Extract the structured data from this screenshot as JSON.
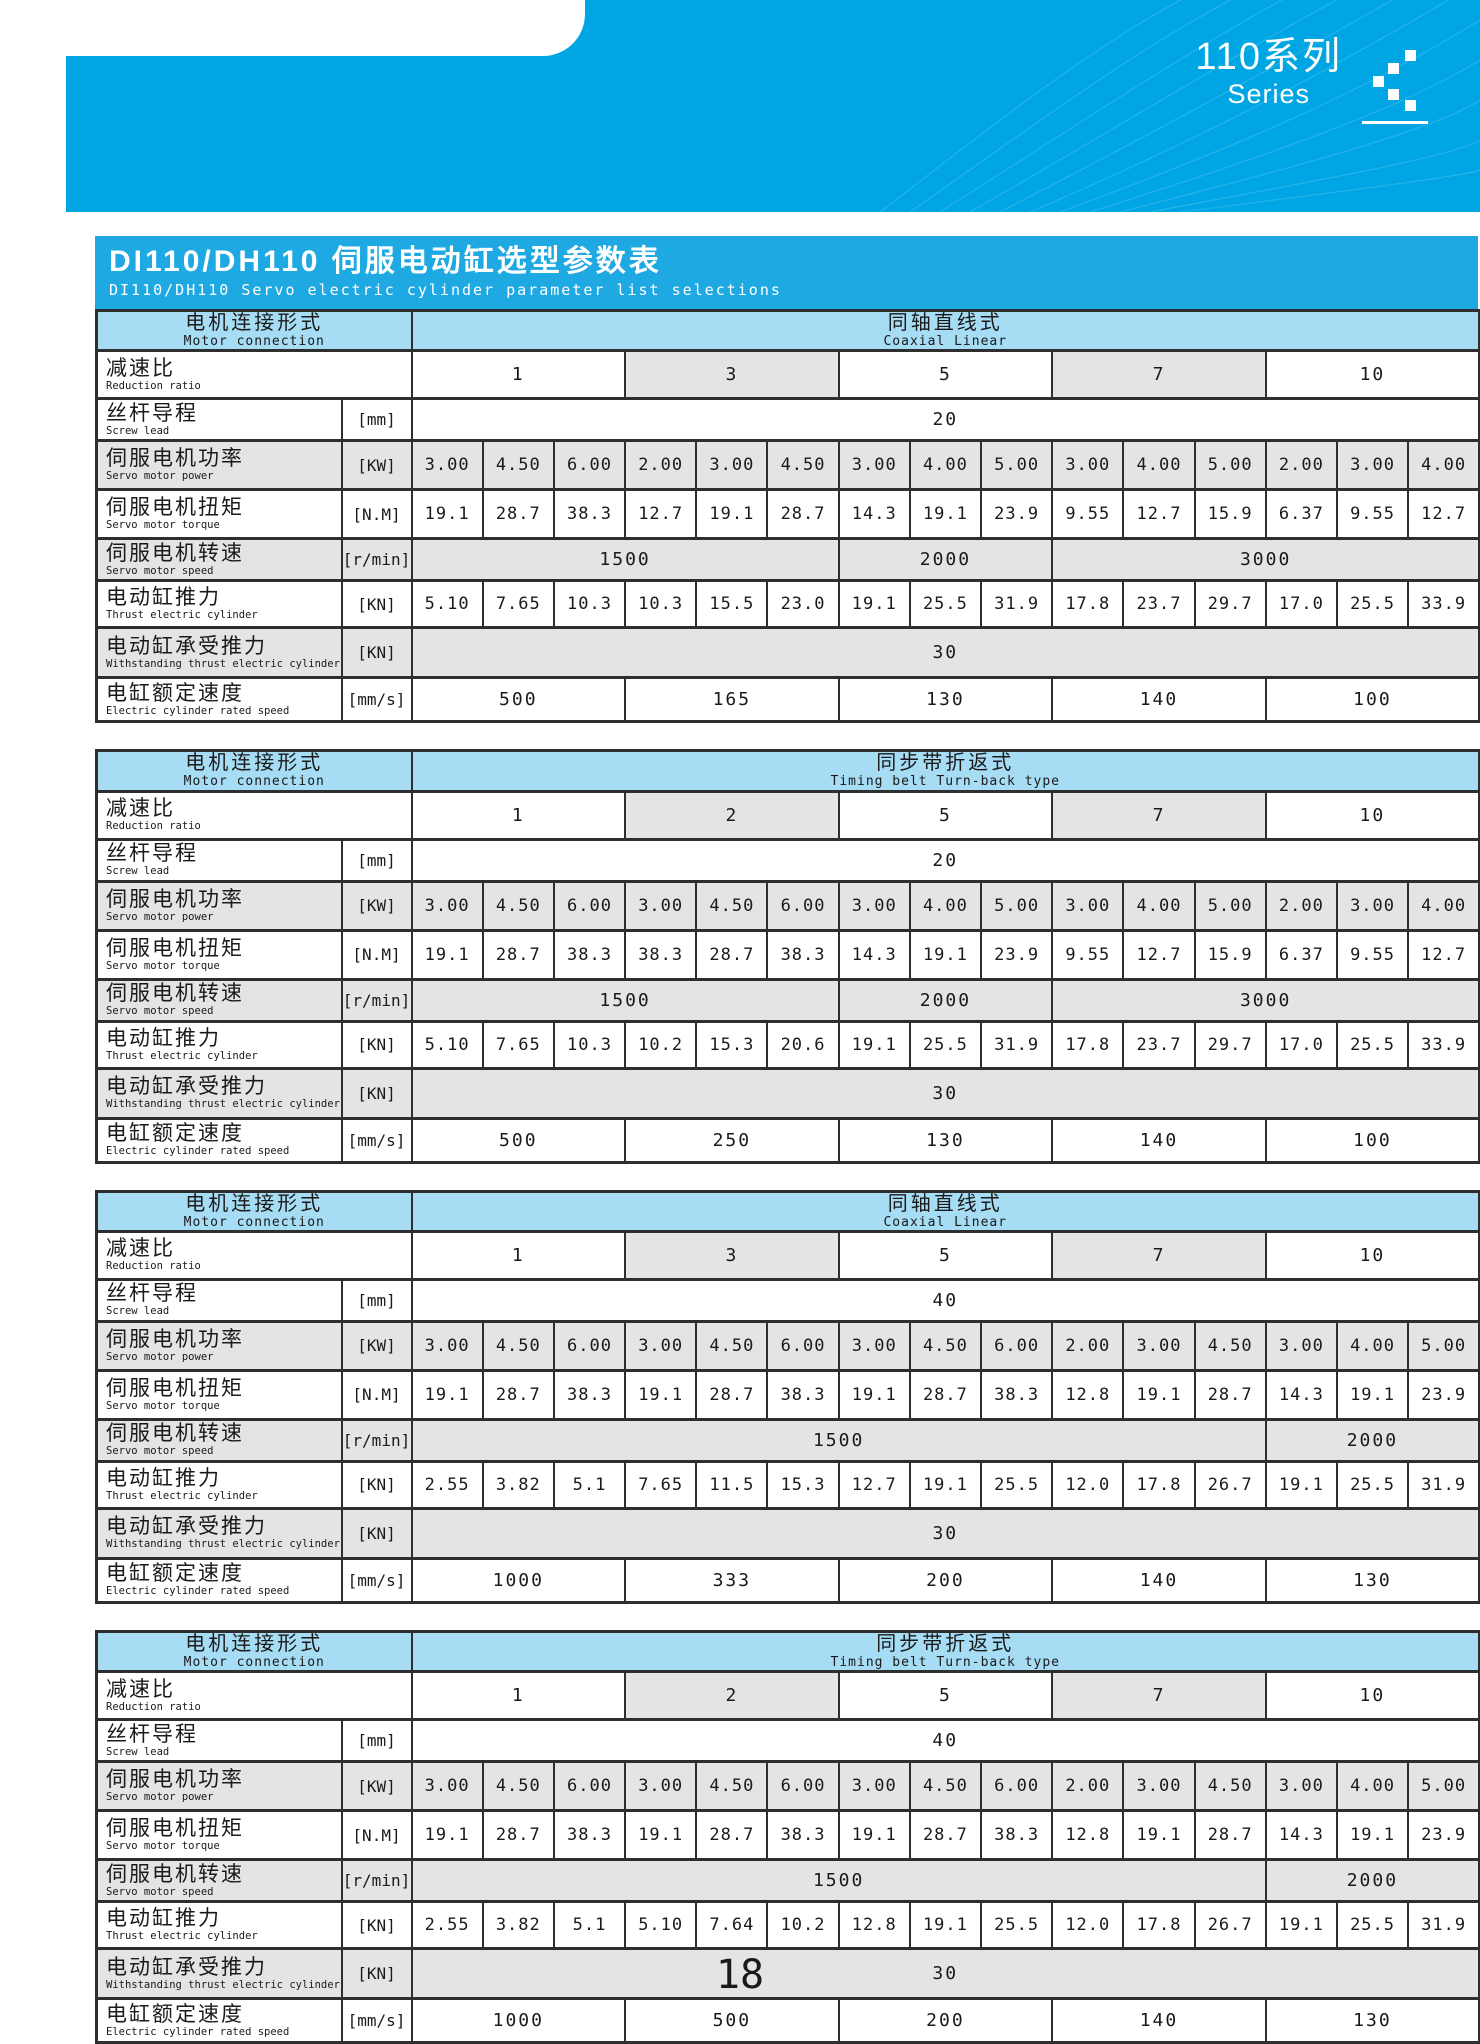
{
  "banner": {
    "series_zh": "110系列",
    "series_en": "Series",
    "logo_icon": "pixel-chevron-icon"
  },
  "title": {
    "zh": "DI110/DH110 伺服电动缸选型参数表",
    "en": "DI110/DH110  Servo electric cylinder parameter list selections"
  },
  "colors": {
    "banner_cyan": "#00a6e3",
    "title_bar_cyan": "#1fa9e2",
    "header_band_blue": "#a6dcf4",
    "shaded_cell_gray": "#e4e4e4",
    "grid_border": "#2e2e2e"
  },
  "row_labels": {
    "motor_connection": {
      "zh": "电机连接形式",
      "en": "Motor connection"
    },
    "ratio": {
      "zh": "减速比",
      "en": "Reduction ratio"
    },
    "lead": {
      "zh": "丝杆导程",
      "en": "Screw lead",
      "unit": "[mm]"
    },
    "power": {
      "zh": "伺服电机功率",
      "en": "Servo motor power",
      "unit": "[KW]"
    },
    "torque": {
      "zh": "伺服电机扭矩",
      "en": "Servo motor torque",
      "unit": "[N.M]"
    },
    "speed": {
      "zh": "伺服电机转速",
      "en": "Servo motor speed",
      "unit": "[r/min]"
    },
    "thrust": {
      "zh": "电动缸推力",
      "en": "Thrust electric cylinder",
      "unit": "[KN]"
    },
    "withstand": {
      "zh": "电动缸承受推力",
      "en": "Withstanding thrust electric cylinder",
      "unit": "[KN]"
    },
    "rated": {
      "zh": "电缸额定速度",
      "en": "Electric cylinder rated speed",
      "unit": "[mm/s]"
    }
  },
  "tables": [
    {
      "type_zh": "同轴直线式",
      "type_en": "Coaxial Linear",
      "ratio_values": [
        "1",
        "3",
        "5",
        "7",
        "10"
      ],
      "lead": "20",
      "power": [
        "3.00",
        "4.50",
        "6.00",
        "2.00",
        "3.00",
        "4.50",
        "3.00",
        "4.00",
        "5.00",
        "3.00",
        "4.00",
        "5.00",
        "2.00",
        "3.00",
        "4.00"
      ],
      "torque": [
        "19.1",
        "28.7",
        "38.3",
        "12.7",
        "19.1",
        "28.7",
        "14.3",
        "19.1",
        "23.9",
        "9.55",
        "12.7",
        "15.9",
        "6.37",
        "9.55",
        "12.7"
      ],
      "speed_segments": [
        {
          "value": "1500",
          "span": 6
        },
        {
          "value": "2000",
          "span": 3
        },
        {
          "value": "3000",
          "span": 6
        }
      ],
      "thrust": [
        "5.10",
        "7.65",
        "10.3",
        "10.3",
        "15.5",
        "23.0",
        "19.1",
        "25.5",
        "31.9",
        "17.8",
        "23.7",
        "29.7",
        "17.0",
        "25.5",
        "33.9"
      ],
      "withstand": "30",
      "rated": [
        "500",
        "165",
        "130",
        "140",
        "100"
      ]
    },
    {
      "type_zh": "同步带折返式",
      "type_en": "Timing belt Turn-back type",
      "ratio_values": [
        "1",
        "2",
        "5",
        "7",
        "10"
      ],
      "lead": "20",
      "power": [
        "3.00",
        "4.50",
        "6.00",
        "3.00",
        "4.50",
        "6.00",
        "3.00",
        "4.00",
        "5.00",
        "3.00",
        "4.00",
        "5.00",
        "2.00",
        "3.00",
        "4.00"
      ],
      "torque": [
        "19.1",
        "28.7",
        "38.3",
        "38.3",
        "28.7",
        "38.3",
        "14.3",
        "19.1",
        "23.9",
        "9.55",
        "12.7",
        "15.9",
        "6.37",
        "9.55",
        "12.7"
      ],
      "speed_segments": [
        {
          "value": "1500",
          "span": 6
        },
        {
          "value": "2000",
          "span": 3
        },
        {
          "value": "3000",
          "span": 6
        }
      ],
      "thrust": [
        "5.10",
        "7.65",
        "10.3",
        "10.2",
        "15.3",
        "20.6",
        "19.1",
        "25.5",
        "31.9",
        "17.8",
        "23.7",
        "29.7",
        "17.0",
        "25.5",
        "33.9"
      ],
      "withstand": "30",
      "rated": [
        "500",
        "250",
        "130",
        "140",
        "100"
      ]
    },
    {
      "type_zh": "同轴直线式",
      "type_en": "Coaxial Linear",
      "ratio_values": [
        "1",
        "3",
        "5",
        "7",
        "10"
      ],
      "lead": "40",
      "power": [
        "3.00",
        "4.50",
        "6.00",
        "3.00",
        "4.50",
        "6.00",
        "3.00",
        "4.50",
        "6.00",
        "2.00",
        "3.00",
        "4.50",
        "3.00",
        "4.00",
        "5.00"
      ],
      "torque": [
        "19.1",
        "28.7",
        "38.3",
        "19.1",
        "28.7",
        "38.3",
        "19.1",
        "28.7",
        "38.3",
        "12.8",
        "19.1",
        "28.7",
        "14.3",
        "19.1",
        "23.9"
      ],
      "speed_segments": [
        {
          "value": "1500",
          "span": 12
        },
        {
          "value": "2000",
          "span": 3
        }
      ],
      "thrust": [
        "2.55",
        "3.82",
        "5.1",
        "7.65",
        "11.5",
        "15.3",
        "12.7",
        "19.1",
        "25.5",
        "12.0",
        "17.8",
        "26.7",
        "19.1",
        "25.5",
        "31.9"
      ],
      "withstand": "30",
      "rated": [
        "1000",
        "333",
        "200",
        "140",
        "130"
      ]
    },
    {
      "type_zh": "同步带折返式",
      "type_en": "Timing belt Turn-back type",
      "ratio_values": [
        "1",
        "2",
        "5",
        "7",
        "10"
      ],
      "lead": "40",
      "power": [
        "3.00",
        "4.50",
        "6.00",
        "3.00",
        "4.50",
        "6.00",
        "3.00",
        "4.50",
        "6.00",
        "2.00",
        "3.00",
        "4.50",
        "3.00",
        "4.00",
        "5.00"
      ],
      "torque": [
        "19.1",
        "28.7",
        "38.3",
        "19.1",
        "28.7",
        "38.3",
        "19.1",
        "28.7",
        "38.3",
        "12.8",
        "19.1",
        "28.7",
        "14.3",
        "19.1",
        "23.9"
      ],
      "speed_segments": [
        {
          "value": "1500",
          "span": 12
        },
        {
          "value": "2000",
          "span": 3
        }
      ],
      "thrust": [
        "2.55",
        "3.82",
        "5.1",
        "5.10",
        "7.64",
        "10.2",
        "12.8",
        "19.1",
        "25.5",
        "12.0",
        "17.8",
        "26.7",
        "19.1",
        "25.5",
        "31.9"
      ],
      "withstand": "30",
      "rated": [
        "1000",
        "500",
        "200",
        "140",
        "130"
      ]
    }
  ],
  "page": {
    "number": "18"
  }
}
